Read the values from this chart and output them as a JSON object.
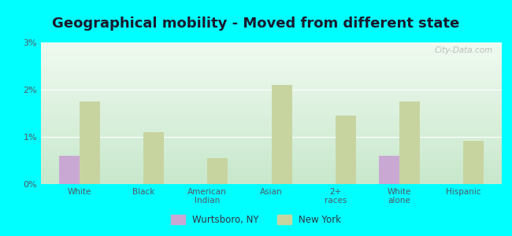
{
  "title": "Geographical mobility - Moved from different state",
  "categories": [
    "White",
    "Black",
    "American\nIndian",
    "Asian",
    "2+\nraces",
    "White\nalone",
    "Hispanic"
  ],
  "wurtsboro_values": [
    0.6,
    0.0,
    0.0,
    0.0,
    0.0,
    0.6,
    0.0
  ],
  "newyork_values": [
    1.75,
    1.1,
    0.55,
    2.1,
    1.45,
    1.75,
    0.92
  ],
  "wurtsboro_color": "#c9a8d4",
  "newyork_color": "#c8d4a0",
  "outer_background": "#00ffff",
  "title_fontsize": 13,
  "title_color": "#1a1a2e",
  "ylim": [
    0,
    3.0
  ],
  "yticks": [
    0,
    1,
    2,
    3
  ],
  "ytick_labels": [
    "0%",
    "1%",
    "2%",
    "3%"
  ],
  "bar_width": 0.32,
  "watermark": "City-Data.com",
  "tick_label_color": "#555566",
  "grid_color": "#dddddd"
}
